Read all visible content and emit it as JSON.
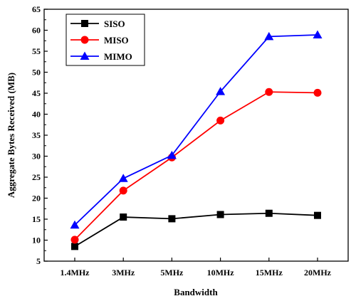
{
  "chart_data": {
    "type": "line",
    "title": "",
    "xlabel": "Bandwidth",
    "ylabel": "Aggregate Bytes Received (MB)",
    "categories": [
      "1.4MHz",
      "3MHz",
      "5MHz",
      "10MHz",
      "15MHz",
      "20MHz"
    ],
    "ylim": [
      5,
      65
    ],
    "yticks": [
      5,
      10,
      15,
      20,
      25,
      30,
      35,
      40,
      45,
      50,
      55,
      60,
      65
    ],
    "grid": false,
    "legend_position": "top-left",
    "series": [
      {
        "name": "SISO",
        "values": [
          8.5,
          15.5,
          15.1,
          16.1,
          16.4,
          15.9
        ],
        "color": "#000000",
        "marker": "square"
      },
      {
        "name": "MISO",
        "values": [
          10.1,
          21.8,
          29.7,
          38.5,
          45.3,
          45.1
        ],
        "color": "#ff0000",
        "marker": "circle"
      },
      {
        "name": "MIMO",
        "values": [
          13.6,
          24.7,
          30.2,
          45.4,
          58.5,
          58.9
        ],
        "color": "#0000ff",
        "marker": "triangle"
      }
    ]
  }
}
